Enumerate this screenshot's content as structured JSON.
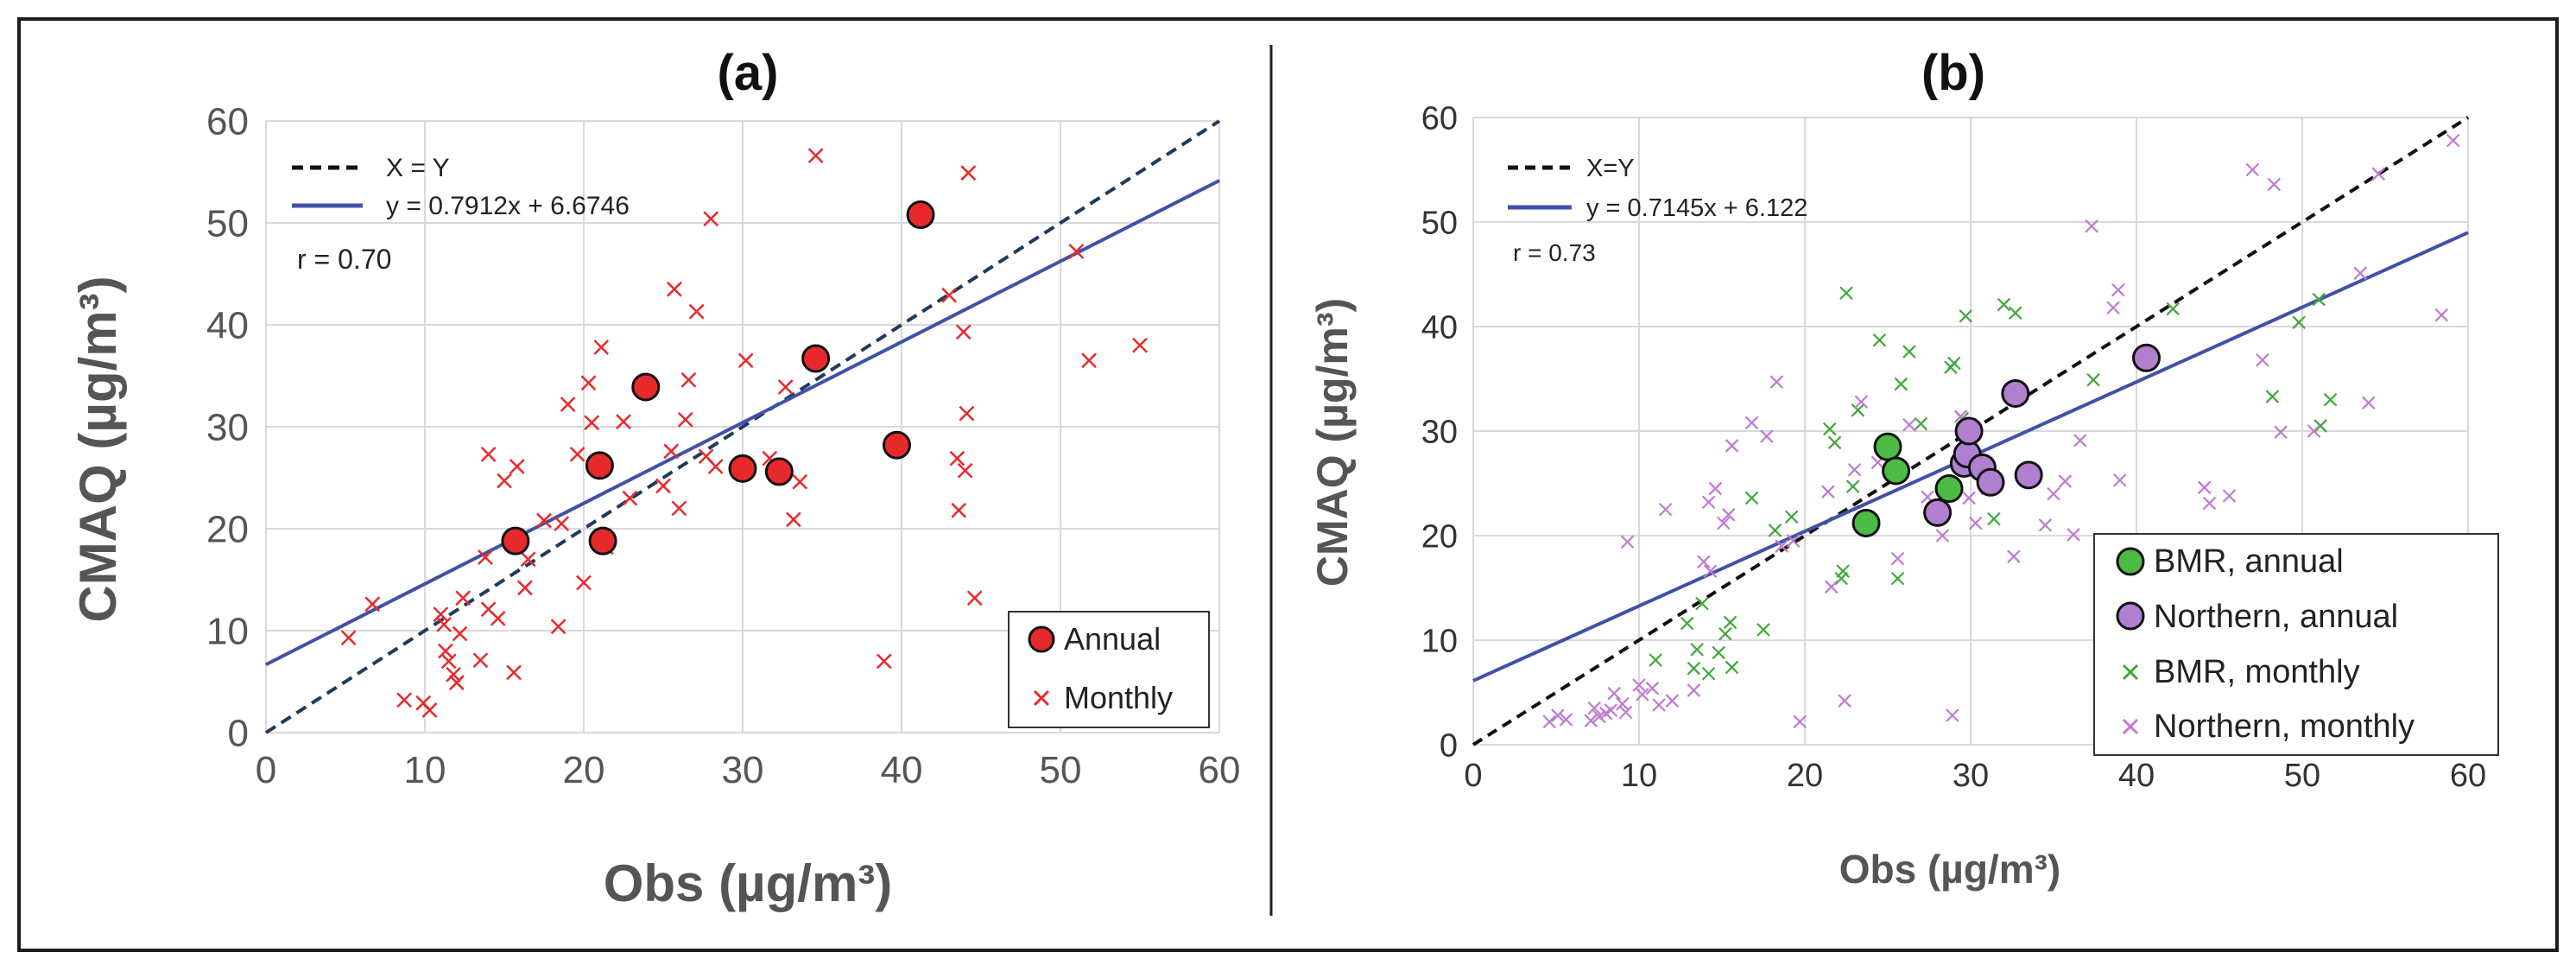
{
  "chart_data": [
    {
      "type": "scatter",
      "panel_label": "(a)",
      "xlabel": "Obs (µg/m³)",
      "ylabel": "CMAQ (µg/m³)",
      "xlim": [
        0,
        60
      ],
      "ylim": [
        0,
        60
      ],
      "xticks": [
        "0",
        "10",
        "20",
        "30",
        "40",
        "50",
        "60"
      ],
      "yticks": [
        "0",
        "10",
        "20",
        "30",
        "40",
        "50",
        "60"
      ],
      "grid": true,
      "lines": [
        {
          "name": "X = Y",
          "slope": 1,
          "intercept": 0,
          "style": "dashed",
          "color": "#1f3a5a"
        },
        {
          "name": "y = 0.7912x + 6.6746",
          "slope": 0.7912,
          "intercept": 6.6746,
          "style": "solid",
          "color": "#3f51a8"
        }
      ],
      "annotation": "r = 0.70",
      "legend_position": "bottom-right",
      "series": [
        {
          "name": "Annual",
          "marker": "circle",
          "color": "#e8292b",
          "points": [
            [
              15.7,
              18.8
            ],
            [
              21.2,
              18.8
            ],
            [
              21.0,
              26.2
            ],
            [
              23.9,
              33.9
            ],
            [
              30.0,
              25.9
            ],
            [
              32.3,
              25.6
            ],
            [
              34.6,
              36.7
            ],
            [
              39.7,
              28.2
            ],
            [
              41.2,
              50.8
            ]
          ]
        },
        {
          "name": "Monthly",
          "marker": "x",
          "color": "#e8292b",
          "points": [
            [
              5.2,
              9.3
            ],
            [
              6.7,
              12.6
            ],
            [
              8.7,
              3.2
            ],
            [
              9.9,
              2.9
            ],
            [
              10.3,
              2.2
            ],
            [
              11.0,
              11.6
            ],
            [
              11.2,
              10.6
            ],
            [
              11.3,
              8.0
            ],
            [
              11.5,
              7.0
            ],
            [
              11.8,
              5.7
            ],
            [
              12.0,
              4.9
            ],
            [
              12.2,
              9.7
            ],
            [
              12.4,
              13.2
            ],
            [
              13.5,
              7.1
            ],
            [
              13.8,
              17.2
            ],
            [
              14.0,
              12.1
            ],
            [
              14.0,
              27.3
            ],
            [
              14.6,
              11.2
            ],
            [
              15.0,
              24.7
            ],
            [
              15.6,
              5.9
            ],
            [
              15.8,
              26.1
            ],
            [
              16.3,
              14.2
            ],
            [
              16.5,
              17.0
            ],
            [
              17.5,
              20.8
            ],
            [
              18.4,
              10.4
            ],
            [
              18.6,
              20.5
            ],
            [
              19.0,
              32.2
            ],
            [
              19.6,
              27.3
            ],
            [
              20.0,
              14.7
            ],
            [
              20.3,
              34.3
            ],
            [
              20.5,
              30.4
            ],
            [
              21.1,
              37.8
            ],
            [
              21.4,
              18.2
            ],
            [
              22.5,
              30.5
            ],
            [
              22.9,
              23.0
            ],
            [
              25.0,
              24.2
            ],
            [
              25.5,
              27.6
            ],
            [
              25.7,
              43.5
            ],
            [
              26.0,
              22.0
            ],
            [
              26.4,
              30.7
            ],
            [
              26.6,
              34.6
            ],
            [
              27.1,
              41.3
            ],
            [
              27.7,
              27.1
            ],
            [
              28.0,
              50.4
            ],
            [
              28.3,
              26.1
            ],
            [
              30.2,
              36.5
            ],
            [
              31.7,
              26.9
            ],
            [
              32.7,
              33.9
            ],
            [
              33.2,
              20.9
            ],
            [
              33.6,
              24.6
            ],
            [
              34.6,
              56.6
            ],
            [
              38.9,
              7.0
            ],
            [
              43.0,
              42.9
            ],
            [
              43.5,
              26.9
            ],
            [
              43.6,
              21.8
            ],
            [
              43.9,
              39.3
            ],
            [
              44.0,
              25.7
            ],
            [
              44.1,
              31.3
            ],
            [
              44.2,
              54.9
            ],
            [
              44.6,
              13.2
            ],
            [
              51.0,
              47.2
            ],
            [
              51.8,
              36.5
            ],
            [
              55.0,
              38.0
            ]
          ]
        }
      ]
    },
    {
      "type": "scatter",
      "panel_label": "(b)",
      "xlabel": "Obs (µg/m³)",
      "ylabel": "CMAQ (µg/m³)",
      "xlim": [
        0,
        60
      ],
      "ylim": [
        0,
        60
      ],
      "xticks": [
        "0",
        "10",
        "20",
        "30",
        "40",
        "50",
        "60"
      ],
      "yticks": [
        "0",
        "10",
        "20",
        "30",
        "40",
        "50",
        "60"
      ],
      "grid": true,
      "lines": [
        {
          "name": "X=Y",
          "slope": 1,
          "intercept": 0,
          "style": "dashed",
          "color": "#111111"
        },
        {
          "name": "y = 0.7145x + 6.122",
          "slope": 0.7145,
          "intercept": 6.122,
          "style": "solid",
          "color": "#3f51a8"
        }
      ],
      "annotation": "r = 0.73",
      "legend_position": "bottom-right",
      "series": [
        {
          "name": "BMR, annual",
          "marker": "circle",
          "color": "#4cbb45",
          "points": [
            [
              23.7,
              21.2
            ],
            [
              25.0,
              28.5
            ],
            [
              25.5,
              26.2
            ],
            [
              28.7,
              24.5
            ]
          ]
        },
        {
          "name": "Northern, annual",
          "marker": "circle",
          "color": "#b07fd0",
          "points": [
            [
              28.0,
              22.2
            ],
            [
              29.6,
              26.9
            ],
            [
              29.8,
              27.8
            ],
            [
              29.9,
              30.0
            ],
            [
              30.7,
              26.5
            ],
            [
              31.2,
              25.1
            ],
            [
              32.7,
              33.6
            ],
            [
              33.5,
              25.8
            ],
            [
              40.6,
              37.0
            ]
          ]
        },
        {
          "name": "BMR, monthly",
          "marker": "x",
          "color": "#3fa83a",
          "points": [
            [
              11.0,
              8.1
            ],
            [
              12.9,
              11.6
            ],
            [
              13.3,
              7.3
            ],
            [
              13.5,
              9.1
            ],
            [
              13.8,
              13.5
            ],
            [
              14.2,
              6.8
            ],
            [
              14.8,
              8.8
            ],
            [
              15.2,
              10.6
            ],
            [
              15.5,
              11.7
            ],
            [
              15.6,
              7.4
            ],
            [
              16.8,
              23.6
            ],
            [
              17.5,
              11.0
            ],
            [
              18.2,
              20.5
            ],
            [
              19.2,
              21.8
            ],
            [
              21.5,
              30.2
            ],
            [
              21.8,
              28.9
            ],
            [
              22.2,
              15.9
            ],
            [
              22.3,
              16.6
            ],
            [
              22.5,
              43.2
            ],
            [
              22.9,
              24.7
            ],
            [
              23.2,
              32.0
            ],
            [
              24.5,
              38.7
            ],
            [
              25.6,
              15.9
            ],
            [
              25.8,
              34.5
            ],
            [
              26.3,
              37.6
            ],
            [
              27.0,
              30.7
            ],
            [
              28.8,
              36.1
            ],
            [
              29.0,
              36.5
            ],
            [
              29.5,
              31.2
            ],
            [
              29.7,
              41.0
            ],
            [
              31.4,
              21.6
            ],
            [
              32.0,
              42.1
            ],
            [
              32.7,
              41.3
            ],
            [
              37.4,
              34.9
            ],
            [
              42.2,
              41.7
            ],
            [
              49.8,
              40.4
            ],
            [
              51.1,
              30.5
            ],
            [
              51.7,
              33.0
            ],
            [
              48.2,
              33.3
            ],
            [
              51.0,
              42.6
            ]
          ]
        },
        {
          "name": "Northern, monthly",
          "marker": "x",
          "color": "#c07ad2",
          "points": [
            [
              4.6,
              2.2
            ],
            [
              5.1,
              2.8
            ],
            [
              5.6,
              2.4
            ],
            [
              7.1,
              2.3
            ],
            [
              7.3,
              3.5
            ],
            [
              7.6,
              2.7
            ],
            [
              8.0,
              3.0
            ],
            [
              8.3,
              3.3
            ],
            [
              8.5,
              4.9
            ],
            [
              9.0,
              3.9
            ],
            [
              9.2,
              3.1
            ],
            [
              9.3,
              19.4
            ],
            [
              10.0,
              5.7
            ],
            [
              10.2,
              4.8
            ],
            [
              10.8,
              5.4
            ],
            [
              11.2,
              3.8
            ],
            [
              11.6,
              22.5
            ],
            [
              12.0,
              4.2
            ],
            [
              13.3,
              5.2
            ],
            [
              13.9,
              17.5
            ],
            [
              14.2,
              23.2
            ],
            [
              14.3,
              16.6
            ],
            [
              14.6,
              24.5
            ],
            [
              15.1,
              21.2
            ],
            [
              15.4,
              22.0
            ],
            [
              15.6,
              28.6
            ],
            [
              16.8,
              30.8
            ],
            [
              17.7,
              29.5
            ],
            [
              18.3,
              34.7
            ],
            [
              18.6,
              19.0
            ],
            [
              19.3,
              19.5
            ],
            [
              19.7,
              2.2
            ],
            [
              21.4,
              24.2
            ],
            [
              21.6,
              15.1
            ],
            [
              22.4,
              4.2
            ],
            [
              23.0,
              26.3
            ],
            [
              23.4,
              32.8
            ],
            [
              24.4,
              27.0
            ],
            [
              25.6,
              17.8
            ],
            [
              26.3,
              30.6
            ],
            [
              27.4,
              23.7
            ],
            [
              28.3,
              20.0
            ],
            [
              28.9,
              2.8
            ],
            [
              29.4,
              31.4
            ],
            [
              29.9,
              23.6
            ],
            [
              30.3,
              21.2
            ],
            [
              31.0,
              24.5
            ],
            [
              32.6,
              18.0
            ],
            [
              34.5,
              21.0
            ],
            [
              35.0,
              24.0
            ],
            [
              35.7,
              25.2
            ],
            [
              36.2,
              20.1
            ],
            [
              36.6,
              29.1
            ],
            [
              37.3,
              49.6
            ],
            [
              38.6,
              41.8
            ],
            [
              38.9,
              43.5
            ],
            [
              39.0,
              25.3
            ],
            [
              44.1,
              24.6
            ],
            [
              44.4,
              23.1
            ],
            [
              45.6,
              23.8
            ],
            [
              47.0,
              55.0
            ],
            [
              47.6,
              36.8
            ],
            [
              48.3,
              53.6
            ],
            [
              48.7,
              29.9
            ],
            [
              50.7,
              30.0
            ],
            [
              53.5,
              45.1
            ],
            [
              54.0,
              32.7
            ],
            [
              54.6,
              54.6
            ],
            [
              58.4,
              41.1
            ],
            [
              59.1,
              57.8
            ]
          ]
        }
      ]
    }
  ]
}
